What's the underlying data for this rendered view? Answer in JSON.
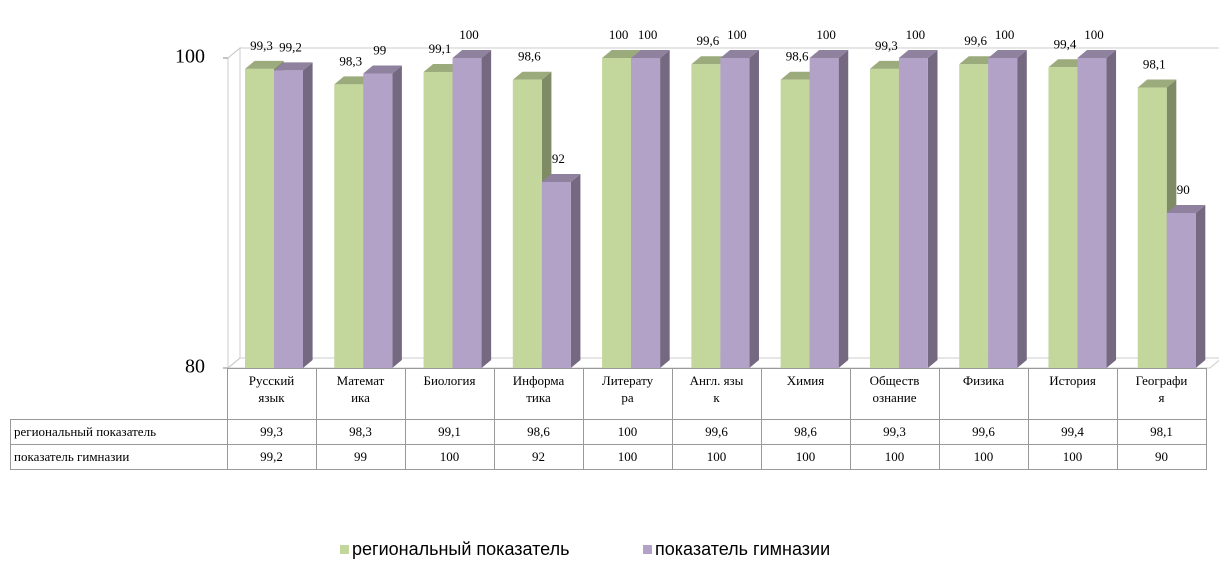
{
  "chart_data": {
    "type": "bar",
    "categories": [
      "Русский язык",
      "Математика",
      "Биология",
      "Информатика",
      "Литература",
      "Англ. язык",
      "Химия",
      "Обществознание",
      "Физика",
      "История",
      "География"
    ],
    "series": [
      {
        "name": "региональный показатель",
        "color": "#c3d69b",
        "values": [
          99.3,
          98.3,
          99.1,
          98.6,
          100,
          99.6,
          98.6,
          99.3,
          99.6,
          99.4,
          98.1
        ],
        "value_labels": [
          "99,3",
          "98,3",
          "99,1",
          "98,6",
          "100",
          "99,6",
          "98,6",
          "99,3",
          "99,6",
          "99,4",
          "98,1"
        ]
      },
      {
        "name": "показатель гимназии",
        "color": "#b3a2c7",
        "values": [
          99.2,
          99,
          100,
          92,
          100,
          100,
          100,
          100,
          100,
          100,
          90
        ],
        "value_labels": [
          "99,2",
          "99",
          "100",
          "92",
          "100",
          "100",
          "100",
          "100",
          "100",
          "100",
          "90"
        ]
      }
    ],
    "ylim": [
      80,
      100
    ],
    "yticks": [
      80,
      100
    ],
    "legend": "bottom"
  }
}
